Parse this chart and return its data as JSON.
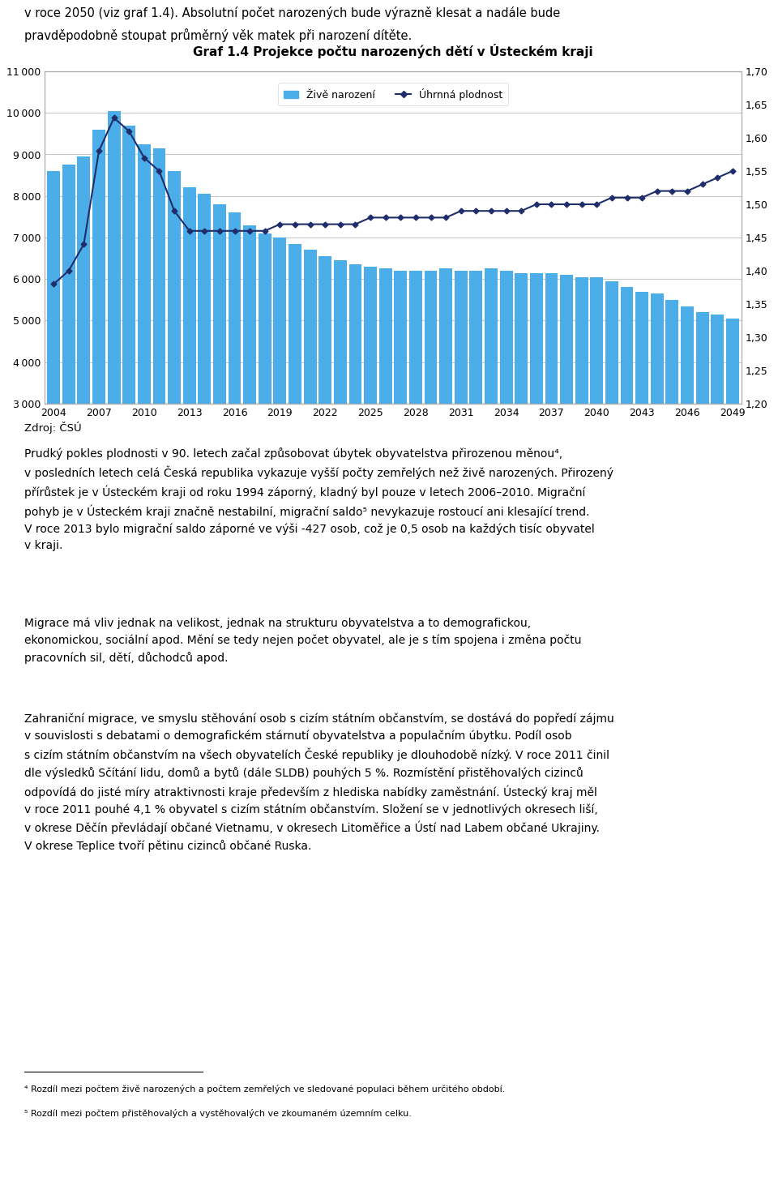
{
  "title": "Graf 1.4 Projekce počtu narozených dětí v Ústeckém kraji",
  "years": [
    2004,
    2005,
    2006,
    2007,
    2008,
    2009,
    2010,
    2011,
    2012,
    2013,
    2014,
    2015,
    2016,
    2017,
    2018,
    2019,
    2020,
    2021,
    2022,
    2023,
    2024,
    2025,
    2026,
    2027,
    2028,
    2029,
    2030,
    2031,
    2032,
    2033,
    2034,
    2035,
    2036,
    2037,
    2038,
    2039,
    2040,
    2041,
    2042,
    2043,
    2044,
    2045,
    2046,
    2047,
    2048,
    2049
  ],
  "bar_values": [
    8600,
    8750,
    8950,
    9600,
    10050,
    9700,
    9250,
    9150,
    8600,
    8200,
    8050,
    7800,
    7600,
    7300,
    7100,
    7000,
    6850,
    6700,
    6550,
    6450,
    6350,
    6300,
    6250,
    6200,
    6200,
    6200,
    6250,
    6200,
    6200,
    6250,
    6200,
    6150,
    6150,
    6150,
    6100,
    6050,
    6050,
    5950,
    5800,
    5700,
    5650,
    5500,
    5350,
    5200,
    5150,
    5050
  ],
  "line_values": [
    1.38,
    1.4,
    1.44,
    1.58,
    1.63,
    1.61,
    1.57,
    1.55,
    1.49,
    1.46,
    1.46,
    1.46,
    1.46,
    1.46,
    1.46,
    1.47,
    1.47,
    1.47,
    1.47,
    1.47,
    1.47,
    1.48,
    1.48,
    1.48,
    1.48,
    1.48,
    1.48,
    1.49,
    1.49,
    1.49,
    1.49,
    1.49,
    1.5,
    1.5,
    1.5,
    1.5,
    1.5,
    1.51,
    1.51,
    1.51,
    1.52,
    1.52,
    1.52,
    1.53,
    1.54,
    1.55
  ],
  "bar_color": "#4BAEE8",
  "line_color": "#1F2D6B",
  "ylim_left": [
    3000,
    11000
  ],
  "ylim_right": [
    1.2,
    1.7
  ],
  "yticks_left": [
    3000,
    4000,
    5000,
    6000,
    7000,
    8000,
    9000,
    10000,
    11000
  ],
  "yticks_right": [
    1.2,
    1.25,
    1.3,
    1.35,
    1.4,
    1.45,
    1.5,
    1.55,
    1.6,
    1.65,
    1.7
  ],
  "xtick_labels": [
    "2004",
    "2007",
    "2010",
    "2013",
    "2016",
    "2019",
    "2022",
    "2025",
    "2028",
    "2031",
    "2034",
    "2037",
    "2040",
    "2043",
    "2046",
    "2049"
  ],
  "legend_bar_label": "Živě narození",
  "legend_line_label": "Úhrnná plodnost",
  "source_text": "Zdroj: ČSÚ",
  "top_text": "v roce 2050 (viz graf 1.4). Absolutní počet narozených bude výrazně klesat a nadále bude\npravděpodobně stoupat průměrný věk matek při narození dítěte.",
  "body_text1": "Prudký pokles plodnosti v 90. letech začal způsobovat úbytek obyvatelstva přirozenou měnou⁴,\nv posledních letech celá Česká republika vykazuje vyšší počty zemřelých než živě narozených. Přirozený\npřírůstek je v Ústeckém kraji od roku 1994 záporný, kladný byl pouze v letech 2006–2010. Migrační\npohyb je v Ústeckém kraji značně nestabilní, migrační saldo⁵ nevykazuje rostoucí ani klesající trend.\nV roce 2013 bylo migrační saldo záporné ve výši -427 osob, což je 0,5 osob na každých tisíc obyvatel\nv kraji.",
  "body_text2": "Migrace má vliv jednak na velikost, jednak na strukturu obyvatelstva a to demografickou,\nekonomickou, sociální apod. Mění se tedy nejen počet obyvatel, ale je s tím spojena i změna počtu\npracovních sil, dětí, důchodců apod.",
  "body_text3": "Zahraniční migrace, ve smyslu stěhování osob s cizím státním občanstvím, se dostává do popředí zájmu\nv souvislosti s debatami o demografickém stárnutí obyvatelstva a populačním úbytku. Podíl osob\ns cizím státním občanstvím na všech obyvatelích České republiky je dlouhodobě nízký. V roce 2011 činil\ndle výsledků Sčítání lidu, domů a bytů (dále SLDB) pouhých 5 %. Rozmístění přistěhovalých cizinců\nodpovídá do jisté míry atraktivnosti kraje především z hlediska nabídky zaměstnání. Ústecký kraj měl\nv roce 2011 pouhé 4,1 % obyvatel s cizím státním občanstvím. Složení se v jednotlivých okresech liší,\nv okrese Děčín převládají občané Vietnamu, v okresech Litoměřice a Ústí nad Labem občané Ukrajiny.\nV okrese Teplice tvoří pětinu cizinců občané Ruska.",
  "footnote1": "⁴ Rozdíl mezi počtem živě narozených a počtem zemřelých ve sledované populaci během určitého období.",
  "footnote2": "⁵ Rozdíl mezi počtem přistěhovalých a vystěhovalých ve zkoumaném územním celku."
}
